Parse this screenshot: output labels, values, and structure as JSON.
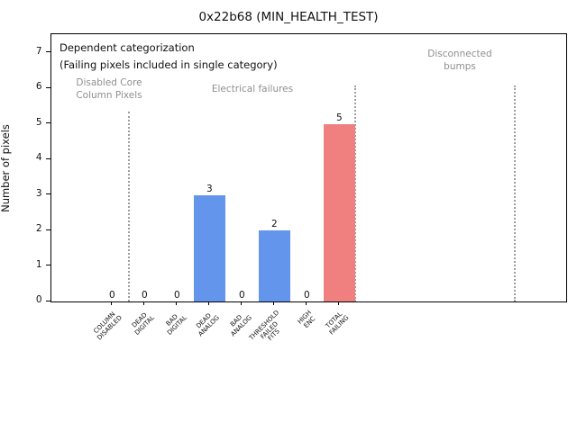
{
  "window": {
    "title": "0x22b68 (MIN_HEALTH_TEST)"
  },
  "notes": {
    "line1": "Dependent categorization",
    "line2": "(Failing pixels included in single category)"
  },
  "sections": [
    {
      "name": "disabled-core-column-pixels",
      "label_lines": [
        "Disabled Core",
        "Column Pixels"
      ]
    },
    {
      "name": "electrical-failures",
      "label_lines": [
        "Electrical failures"
      ]
    },
    {
      "name": "disconnected-bumps",
      "label_lines": [
        "Disconnected",
        "bumps"
      ]
    }
  ],
  "chart_data": {
    "type": "bar",
    "title": "0x22b68 (MIN_HEALTH_TEST)",
    "xlabel": "",
    "ylabel": "Number of pixels",
    "categories": [
      [
        "COLUMN",
        "DISABLED"
      ],
      [
        "DEAD",
        "DIGITAL"
      ],
      [
        "BAD",
        "DIGITAL"
      ],
      [
        "DEAD",
        "ANALOG"
      ],
      [
        "BAD",
        "ANALOG"
      ],
      [
        "THRESHOLD",
        "FAILED",
        "FITS"
      ],
      [
        "HIGH",
        "ENC"
      ],
      [
        "TOTAL",
        "FAILING"
      ]
    ],
    "values": [
      0,
      0,
      0,
      3,
      0,
      2,
      0,
      5
    ],
    "bar_colors": [
      "#6495ED",
      "#6495ED",
      "#6495ED",
      "#6495ED",
      "#6495ED",
      "#6495ED",
      "#6495ED",
      "#F08080"
    ],
    "value_labels": [
      "0",
      "0",
      "0",
      "3",
      "0",
      "2",
      "0",
      "5"
    ],
    "yticks": [
      0,
      1,
      2,
      3,
      4,
      5,
      6,
      7
    ],
    "ylim": [
      0,
      7.53
    ],
    "grid": false,
    "legend": null,
    "annotations": [
      "Dependent categorization",
      "(Failing pixels included in single category)",
      "Disabled Core Column Pixels",
      "Electrical failures",
      "Disconnected bumps"
    ]
  },
  "colors": {
    "bar_blue": "#6495ED",
    "bar_red": "#F08080",
    "section_text_gray": "#8f8f8f",
    "separator_gray": "#9e9e9e",
    "axis_black": "#000000",
    "background": "#ffffff"
  }
}
